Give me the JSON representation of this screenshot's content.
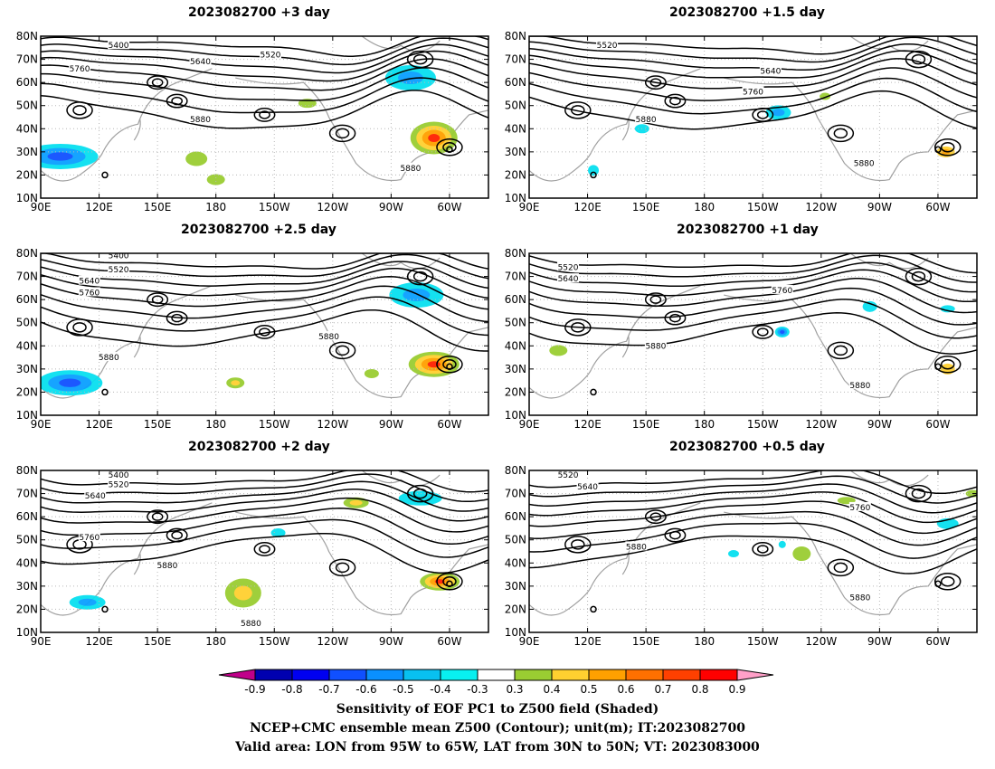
{
  "panels": [
    {
      "title": "2023082700  +3 day"
    },
    {
      "title": "2023082700  +1.5 day"
    },
    {
      "title": "2023082700  +2.5 day"
    },
    {
      "title": "2023082700  +1 day"
    },
    {
      "title": "2023082700  +2 day"
    },
    {
      "title": "2023082700  +0.5 day"
    }
  ],
  "axes": {
    "lat_labels": [
      "80N",
      "70N",
      "60N",
      "50N",
      "40N",
      "30N",
      "20N",
      "10N"
    ],
    "lon_labels": [
      "90E",
      "120E",
      "150E",
      "180",
      "150W",
      "120W",
      "90W",
      "60W"
    ],
    "lat_range": [
      10,
      80
    ],
    "lon_range_deg_east": [
      90,
      320
    ]
  },
  "contour_labels": [
    "5400",
    "5520",
    "5640",
    "5760",
    "5880"
  ],
  "colorbar": {
    "labels": [
      "-0.9",
      "-0.8",
      "-0.7",
      "-0.6",
      "-0.5",
      "-0.4",
      "-0.3",
      "0.3",
      "0.4",
      "0.5",
      "0.6",
      "0.7",
      "0.8",
      "0.9"
    ],
    "colors": [
      "#c0008a",
      "#0000b0",
      "#0000f0",
      "#1050ff",
      "#0a90ff",
      "#08c0f0",
      "#08f0f0",
      "#ffffff",
      "#9acd32",
      "#ffd030",
      "#ffa000",
      "#ff7000",
      "#ff4000",
      "#ff0000",
      "#ffa0c8"
    ]
  },
  "captions": {
    "line1": "Sensitivity of EOF PC1 to Z500 field (Shaded)",
    "line2": "NCEP+CMC ensemble mean Z500 (Contour); unit(m); IT:2023082700",
    "line3": "Valid area: LON from 95W to 65W, LAT from 30N to 50N; VT: 2023083000"
  }
}
